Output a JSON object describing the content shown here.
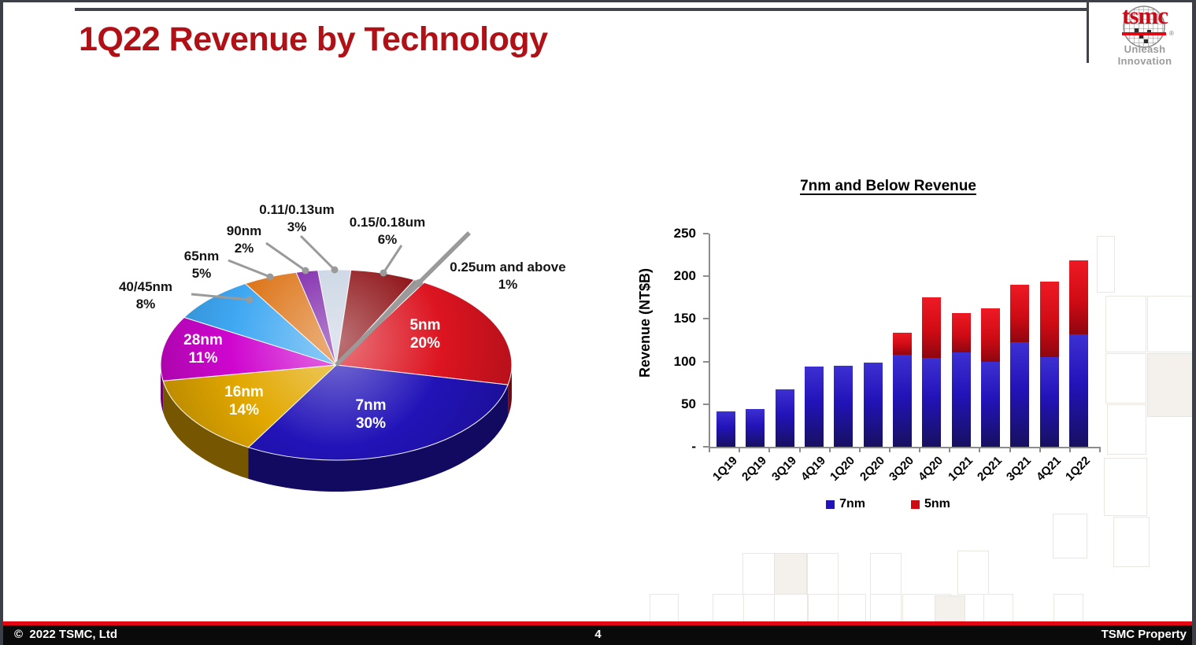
{
  "slide": {
    "title": "1Q22 Revenue by Technology",
    "logo": {
      "brand": "tsmc",
      "registered": "®",
      "tagline": "Unleash Innovation"
    },
    "footer": {
      "copyright": "©  2022 TSMC, Ltd",
      "page_number": "4",
      "property": "TSMC Property"
    }
  },
  "chart_data": [
    {
      "type": "pie",
      "style": "3d",
      "title": "1Q22 Revenue by Technology",
      "units": "% of revenue",
      "start_angle_deg": 30,
      "slices": [
        {
          "label": "5nm",
          "pct": 20,
          "color": "#dc1420",
          "label_inside": true
        },
        {
          "label": "7nm",
          "pct": 30,
          "color": "#2213b8",
          "label_inside": true
        },
        {
          "label": "16nm",
          "pct": 14,
          "color": "#e2a800",
          "label_inside": true
        },
        {
          "label": "28nm",
          "pct": 11,
          "color": "#cf06cf",
          "label_inside": true
        },
        {
          "label": "40/45nm",
          "pct": 8,
          "color": "#3ea7f2",
          "label_inside": false
        },
        {
          "label": "65nm",
          "pct": 5,
          "color": "#dd7519",
          "label_inside": false
        },
        {
          "label": "90nm",
          "pct": 2,
          "color": "#7a1fa8",
          "label_inside": false
        },
        {
          "label": "0.11/0.13um",
          "pct": 3,
          "color": "#c7d2e2",
          "label_inside": false
        },
        {
          "label": "0.15/0.18um",
          "pct": 6,
          "color": "#8c0e12",
          "label_inside": false
        },
        {
          "label": "0.25um and above",
          "pct": 1,
          "color": "#8f8f8f",
          "label_inside": false
        }
      ]
    },
    {
      "type": "bar",
      "stacked": true,
      "title": "7nm and Below Revenue",
      "ylabel": "Revenue (NT$B)",
      "ylim": [
        0,
        250
      ],
      "grid": false,
      "legend_position": "bottom",
      "yticks": {
        "values": [
          0,
          50,
          100,
          150,
          200,
          250
        ],
        "labels": [
          "-",
          "50",
          "100",
          "150",
          "200",
          "250"
        ]
      },
      "categories": [
        "1Q19",
        "2Q19",
        "3Q19",
        "4Q19",
        "1Q20",
        "2Q20",
        "3Q20",
        "4Q20",
        "1Q21",
        "2Q21",
        "3Q21",
        "4Q21",
        "1Q22"
      ],
      "series": [
        {
          "name": "7nm",
          "color": "#2213b8",
          "values": [
            42,
            44,
            67,
            94,
            95,
            99,
            108,
            104,
            111,
            100,
            123,
            105,
            132
          ]
        },
        {
          "name": "5nm",
          "color": "#cf0b14",
          "values": [
            0,
            0,
            0,
            0,
            0,
            0,
            26,
            71,
            46,
            62,
            67,
            89,
            87
          ]
        }
      ]
    }
  ]
}
